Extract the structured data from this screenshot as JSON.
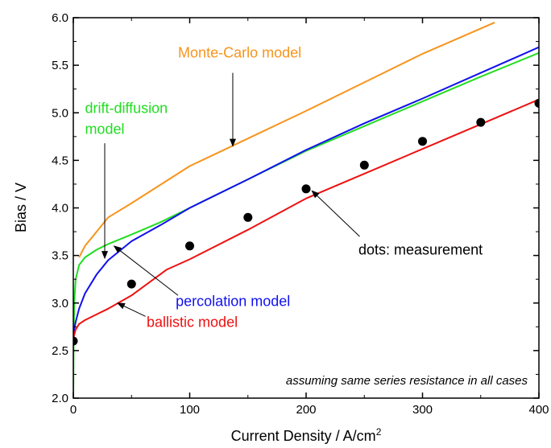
{
  "chart_data": {
    "type": "line",
    "title": "",
    "xlabel": "Current Density / A/cm",
    "xlabel_superscript": "2",
    "ylabel": "Bias / V",
    "xlim": [
      0,
      400
    ],
    "ylim": [
      2.0,
      6.0
    ],
    "x_ticks": [
      0,
      100,
      200,
      300,
      400
    ],
    "x_tick_labels": [
      "0",
      "100",
      "200",
      "300",
      "400"
    ],
    "y_ticks": [
      2.0,
      2.5,
      3.0,
      3.5,
      4.0,
      4.5,
      5.0,
      5.5,
      6.0
    ],
    "y_tick_labels": [
      "2.0",
      "2.5",
      "3.0",
      "3.5",
      "4.0",
      "4.5",
      "5.0",
      "5.5",
      "6.0"
    ],
    "grid": false,
    "series": [
      {
        "key": "monte_carlo",
        "color": "#f7941d",
        "points": [
          [
            5,
            3.48
          ],
          [
            10,
            3.6
          ],
          [
            20,
            3.75
          ],
          [
            30,
            3.9
          ],
          [
            50,
            4.05
          ],
          [
            100,
            4.44
          ],
          [
            150,
            4.73
          ],
          [
            200,
            5.02
          ],
          [
            250,
            5.32
          ],
          [
            300,
            5.62
          ],
          [
            362,
            5.95
          ]
        ]
      },
      {
        "key": "drift_diffusion",
        "color": "#22dd22",
        "points": [
          [
            0,
            2.0
          ],
          [
            0.3,
            2.6
          ],
          [
            0.8,
            3.0
          ],
          [
            2,
            3.25
          ],
          [
            5,
            3.4
          ],
          [
            10,
            3.48
          ],
          [
            20,
            3.56
          ],
          [
            30,
            3.62
          ],
          [
            50,
            3.72
          ],
          [
            75,
            3.85
          ],
          [
            100,
            4.0
          ],
          [
            150,
            4.3
          ],
          [
            200,
            4.6
          ],
          [
            250,
            4.86
          ],
          [
            300,
            5.12
          ],
          [
            350,
            5.38
          ],
          [
            400,
            5.63
          ]
        ]
      },
      {
        "key": "percolation",
        "color": "#1010ee",
        "points": [
          [
            0,
            2.6
          ],
          [
            0.5,
            2.7
          ],
          [
            2,
            2.8
          ],
          [
            5,
            2.94
          ],
          [
            10,
            3.1
          ],
          [
            20,
            3.3
          ],
          [
            30,
            3.45
          ],
          [
            50,
            3.65
          ],
          [
            75,
            3.82
          ],
          [
            100,
            4.0
          ],
          [
            150,
            4.3
          ],
          [
            200,
            4.61
          ],
          [
            250,
            4.89
          ],
          [
            300,
            5.15
          ],
          [
            350,
            5.42
          ],
          [
            400,
            5.69
          ]
        ]
      },
      {
        "key": "ballistic",
        "color": "#ee1111",
        "points": [
          [
            0,
            2.6
          ],
          [
            0.5,
            2.65
          ],
          [
            2,
            2.72
          ],
          [
            5,
            2.78
          ],
          [
            10,
            2.82
          ],
          [
            20,
            2.88
          ],
          [
            30,
            2.94
          ],
          [
            50,
            3.08
          ],
          [
            80,
            3.35
          ],
          [
            100,
            3.46
          ],
          [
            150,
            3.77
          ],
          [
            200,
            4.1
          ],
          [
            250,
            4.36
          ],
          [
            300,
            4.62
          ],
          [
            350,
            4.88
          ],
          [
            400,
            5.14
          ]
        ]
      }
    ],
    "measurement": {
      "color": "#000000",
      "x": [
        0,
        50,
        100,
        150,
        200,
        250,
        300,
        350,
        400
      ],
      "y": [
        2.6,
        3.2,
        3.6,
        3.9,
        4.2,
        4.45,
        4.7,
        4.9,
        5.1
      ]
    },
    "annotations": [
      {
        "key": "mc",
        "lines": [
          "Monte-Carlo model"
        ],
        "color": "#f7941d",
        "x": 90,
        "y": 5.58,
        "arrow_from": [
          137,
          5.42
        ],
        "arrow_to": [
          137,
          4.65
        ]
      },
      {
        "key": "dd",
        "lines": [
          "drift-diffusion",
          "model"
        ],
        "color": "#22dd22",
        "x": 10,
        "y": 5.0,
        "line2_y": 4.78,
        "arrow_from": [
          27,
          4.68
        ],
        "arrow_to": [
          27,
          3.47
        ]
      },
      {
        "key": "perc",
        "lines": [
          "percolation model"
        ],
        "color": "#1010ee",
        "x": 88,
        "y": 2.97,
        "arrow_from": [
          90,
          3.08
        ],
        "arrow_to": [
          35,
          3.6
        ]
      },
      {
        "key": "ball",
        "lines": [
          "ballistic model"
        ],
        "color": "#ee1111",
        "x": 63,
        "y": 2.75,
        "arrow_from": [
          62,
          2.86
        ],
        "arrow_to": [
          38,
          3.0
        ]
      },
      {
        "key": "meas",
        "lines": [
          "dots: measurement"
        ],
        "color": "#000000",
        "x": 245,
        "y": 3.51,
        "arrow_from": [
          246,
          3.7
        ],
        "arrow_to": [
          205,
          4.18
        ]
      }
    ],
    "note": "assuming same series resistance in all cases"
  }
}
